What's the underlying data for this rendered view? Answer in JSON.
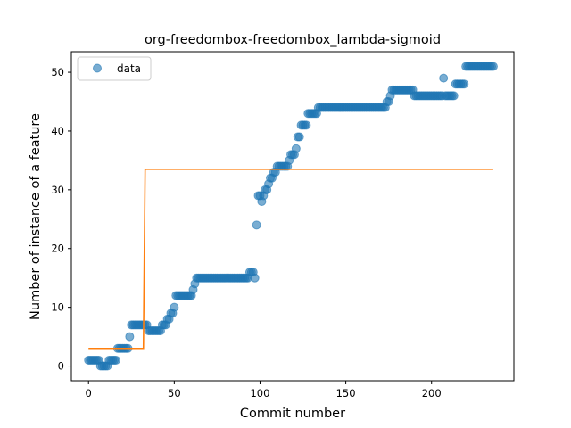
{
  "chart_data": {
    "type": "scatter",
    "title": "org-freedombox-freedombox_lambda-sigmoid",
    "xlabel": "Commit number",
    "ylabel": "Number of instance of a feature",
    "xlim": [
      -10,
      248
    ],
    "ylim": [
      -2.5,
      53.5
    ],
    "xticks": [
      0,
      50,
      100,
      150,
      200
    ],
    "yticks": [
      0,
      10,
      20,
      30,
      40,
      50
    ],
    "grid": false,
    "legend": {
      "placement": "upper-left",
      "entries": [
        "data"
      ]
    },
    "colors": {
      "data": "#1f77b4",
      "fit": "#ff7f0e"
    },
    "series": [
      {
        "name": "data",
        "kind": "scatter",
        "segments": [
          [
            0,
            6,
            1
          ],
          [
            7,
            11,
            0
          ],
          [
            12,
            16,
            1
          ],
          [
            17,
            23,
            3
          ],
          [
            24,
            24,
            5
          ],
          [
            25,
            34,
            7
          ],
          [
            35,
            42,
            6
          ],
          [
            43,
            45,
            7
          ],
          [
            46,
            47,
            8
          ],
          [
            48,
            49,
            9
          ],
          [
            50,
            50,
            10
          ],
          [
            51,
            60,
            12
          ],
          [
            61,
            61,
            13
          ],
          [
            62,
            62,
            14
          ],
          [
            63,
            93,
            15
          ],
          [
            94,
            96,
            16
          ],
          [
            97,
            97,
            15
          ],
          [
            98,
            98,
            24
          ],
          [
            99,
            100,
            29
          ],
          [
            101,
            101,
            28
          ],
          [
            102,
            102,
            29
          ],
          [
            103,
            104,
            30
          ],
          [
            105,
            105,
            31
          ],
          [
            106,
            107,
            32
          ],
          [
            108,
            109,
            33
          ],
          [
            110,
            116,
            34
          ],
          [
            117,
            117,
            35
          ],
          [
            118,
            120,
            36
          ],
          [
            121,
            121,
            37
          ],
          [
            122,
            123,
            39
          ],
          [
            124,
            127,
            41
          ],
          [
            128,
            130,
            43
          ],
          [
            131,
            133,
            43
          ],
          [
            134,
            173,
            44
          ],
          [
            174,
            175,
            45
          ],
          [
            176,
            176,
            46
          ],
          [
            177,
            189,
            47
          ],
          [
            190,
            206,
            46
          ],
          [
            207,
            207,
            49
          ],
          [
            208,
            213,
            46
          ],
          [
            214,
            219,
            48
          ],
          [
            220,
            236,
            51
          ]
        ]
      },
      {
        "name": "",
        "kind": "line",
        "points": [
          [
            0,
            3
          ],
          [
            32,
            3
          ],
          [
            33,
            33.5
          ],
          [
            236,
            33.5
          ]
        ]
      }
    ]
  }
}
